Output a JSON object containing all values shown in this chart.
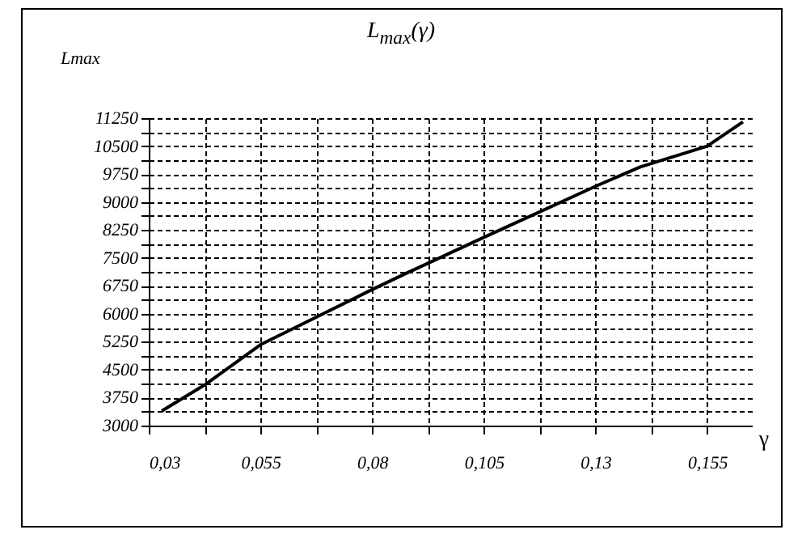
{
  "chart_data": {
    "type": "line",
    "title": "L$_{max}$(γ)",
    "xlabel": "γ",
    "ylabel": "Lmax",
    "x": [
      0.0329,
      0.0425,
      0.055,
      0.0675,
      0.08,
      0.0875,
      0.105,
      0.13,
      0.14,
      0.155,
      0.163
    ],
    "series": [
      {
        "color": "#000000",
        "values": [
          3390,
          4090,
          5170,
          5910,
          6650,
          7080,
          8050,
          9420,
          9940,
          10500,
          11150
        ]
      }
    ],
    "xlim": [
      0.03,
      0.165
    ],
    "xticks": [
      {
        "value": 0.03,
        "label": "0,03"
      },
      {
        "value": 0.0425,
        "label": null
      },
      {
        "value": 0.055,
        "label": "0,055"
      },
      {
        "value": 0.0675,
        "label": null
      },
      {
        "value": 0.08,
        "label": "0,08"
      },
      {
        "value": 0.0925,
        "label": null
      },
      {
        "value": 0.105,
        "label": "0,105"
      },
      {
        "value": 0.1175,
        "label": null
      },
      {
        "value": 0.13,
        "label": "0,13"
      },
      {
        "value": 0.1425,
        "label": null
      },
      {
        "value": 0.155,
        "label": "0,155"
      }
    ],
    "ylim": [
      3000,
      11250
    ],
    "yticks": [
      3000,
      {
        "value": 3375,
        "label": null
      },
      3750,
      {
        "value": 4125,
        "label": null
      },
      4500,
      {
        "value": 4875,
        "label": null
      },
      5250,
      {
        "value": 5625,
        "label": null
      },
      6000,
      {
        "value": 6375,
        "label": null
      },
      6750,
      {
        "value": 7125,
        "label": null
      },
      7500,
      {
        "value": 7875,
        "label": null
      },
      8250,
      {
        "value": 8625,
        "label": null
      },
      9000,
      {
        "value": 9375,
        "label": null
      },
      9750,
      {
        "value": 10125,
        "label": null
      },
      10500,
      {
        "value": 10875,
        "label": null
      },
      11250
    ],
    "grid": true,
    "marker": "none",
    "line_style": "solid"
  }
}
